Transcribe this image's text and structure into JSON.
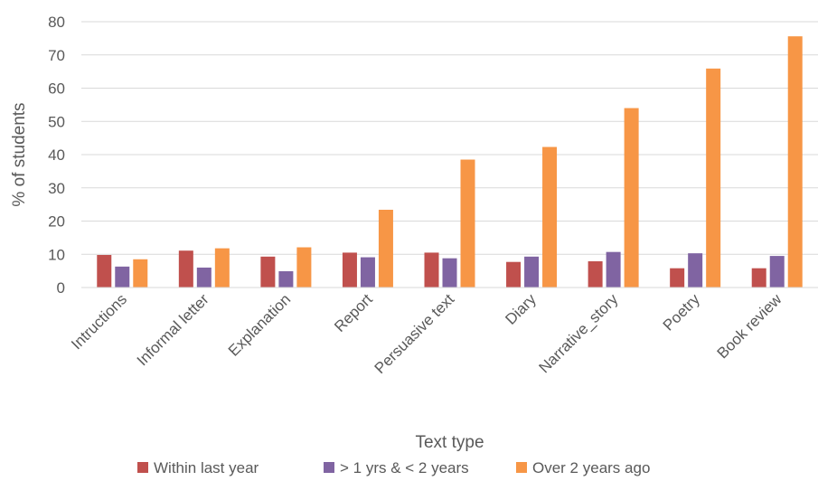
{
  "chart_data": {
    "type": "bar",
    "title": "",
    "xlabel": "Text type",
    "ylabel": "% of students",
    "ylim": [
      0,
      80
    ],
    "yticks": [
      0,
      10,
      20,
      30,
      40,
      50,
      60,
      70,
      80
    ],
    "grid": true,
    "legend_position": "bottom",
    "categories": [
      "Intructions",
      "Informal letter",
      "Explanation",
      "Report",
      "Persuasive text",
      "Diary",
      "Narrative_story",
      "Poetry",
      "Book review"
    ],
    "series": [
      {
        "name": "Within last year",
        "color": "#c0504d",
        "values": [
          9.8,
          11.1,
          9.3,
          10.5,
          10.5,
          7.7,
          7.9,
          5.8,
          5.8
        ]
      },
      {
        "name": "> 1 yrs & < 2 years",
        "color": "#8064a2",
        "values": [
          6.3,
          6.0,
          4.9,
          9.1,
          8.8,
          9.3,
          10.7,
          10.3,
          9.5
        ]
      },
      {
        "name": "Over 2 years ago",
        "color": "#f79646",
        "values": [
          8.5,
          11.8,
          12.1,
          23.4,
          38.5,
          42.3,
          54.0,
          65.9,
          75.6
        ]
      }
    ]
  }
}
